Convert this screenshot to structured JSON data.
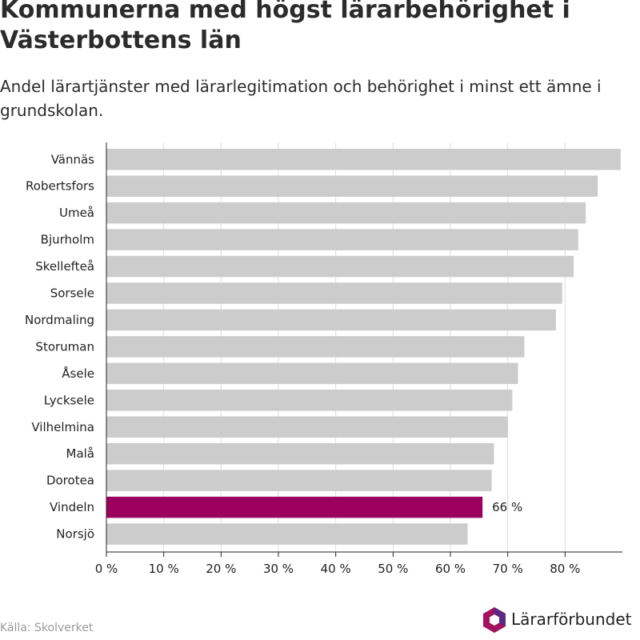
{
  "title": "Kommunerna med högst lärarbehörighet i Västerbottens län",
  "subtitle": "Andel lärartjänster med lärarlegitimation och behörighet i minst ett ämne i grundskolan.",
  "source": "Källa: Skolverket",
  "logo_text": "Lärarförbundet",
  "chart_data": {
    "type": "bar",
    "orientation": "horizontal",
    "categories": [
      "Vännäs",
      "Robertsfors",
      "Umeå",
      "Bjurholm",
      "Skellefteå",
      "Sorsele",
      "Nordmaling",
      "Storuman",
      "Åsele",
      "Lycksele",
      "Vilhelmina",
      "Malå",
      "Dorotea",
      "Vindeln",
      "Norsjö"
    ],
    "values": [
      89.7,
      85.7,
      83.6,
      82.3,
      81.5,
      79.5,
      78.4,
      72.9,
      71.8,
      70.8,
      70.0,
      67.6,
      67.2,
      65.6,
      63.0
    ],
    "xlim": [
      0,
      90
    ],
    "xticks": [
      0,
      10,
      20,
      30,
      40,
      50,
      60,
      70,
      80
    ],
    "tick_labels": [
      "0 %",
      "10 %",
      "20 %",
      "30 %",
      "40 %",
      "50 %",
      "60 %",
      "70 %",
      "80 %"
    ],
    "grid": true,
    "default_color": "#cccccc",
    "highlight": {
      "category": "Vindeln",
      "color": "#9b005f",
      "label": "66 %"
    }
  },
  "colors": {
    "title": "#2b2b2b",
    "grid": "#dddddd",
    "axis": "#222222",
    "source": "#9a9a9a",
    "logo_magenta": "#a3135f",
    "logo_purple": "#5b2a84"
  }
}
